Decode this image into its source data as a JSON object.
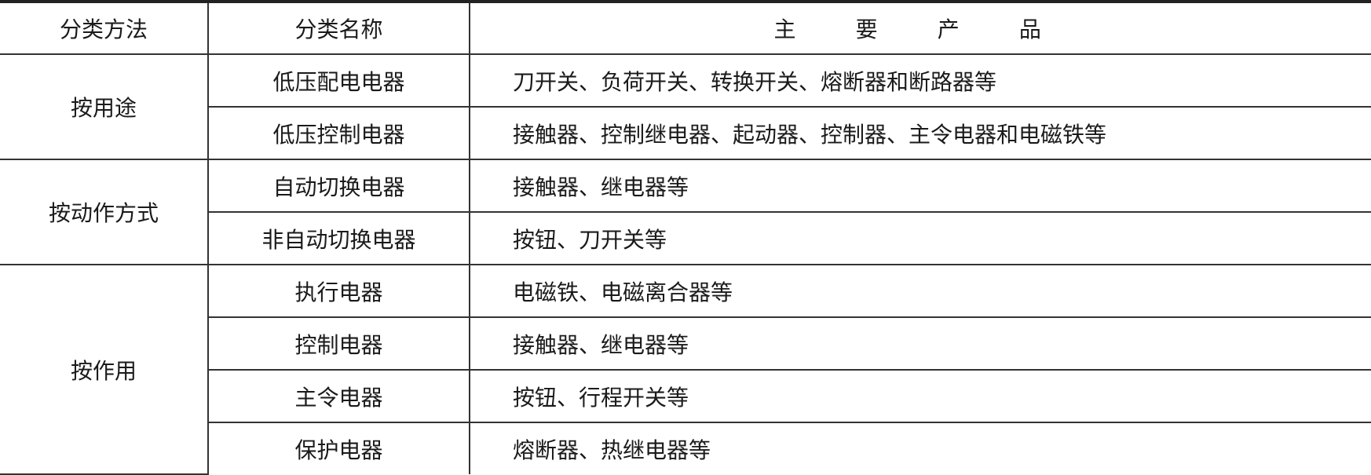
{
  "header": {
    "method": "分类方法",
    "name": "分类名称",
    "products": "主 要 产 品"
  },
  "groups": [
    {
      "method": "按用途",
      "rows": [
        {
          "name": "低压配电电器",
          "products": "刀开关、负荷开关、转换开关、熔断器和断路器等"
        },
        {
          "name": "低压控制电器",
          "products": "接触器、控制继电器、起动器、控制器、主令电器和电磁铁等"
        }
      ]
    },
    {
      "method": "按动作方式",
      "rows": [
        {
          "name": "自动切换电器",
          "products": "接触器、继电器等"
        },
        {
          "name": "非自动切换电器",
          "products": "按钮、刀开关等"
        }
      ]
    },
    {
      "method": "按作用",
      "rows": [
        {
          "name": "执行电器",
          "products": "电磁铁、电磁离合器等"
        },
        {
          "name": "控制电器",
          "products": "接触器、继电器等"
        },
        {
          "name": "主令电器",
          "products": "按钮、行程开关等"
        },
        {
          "name": "保护电器",
          "products": "熔断器、热继电器等"
        }
      ]
    }
  ]
}
